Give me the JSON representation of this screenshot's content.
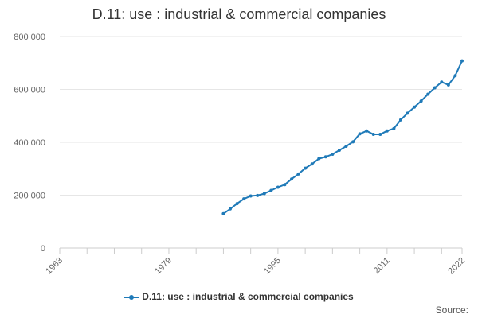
{
  "chart_data": {
    "type": "line",
    "title": "D.11: use : industrial & commercial companies",
    "xlabel": "",
    "ylabel": "",
    "x_ticks": [
      "1963",
      "1979",
      "1995",
      "2011",
      "2022"
    ],
    "y_ticks": [
      "0",
      "200 000",
      "400 000",
      "600 000",
      "800 000"
    ],
    "xlim": [
      1963,
      2022
    ],
    "ylim": [
      0,
      800000
    ],
    "grid": "horizontal",
    "legend_position": "bottom",
    "series": [
      {
        "name": "D.11: use : industrial & commercial companies",
        "color": "#1f7ab8",
        "x": [
          1987,
          1988,
          1989,
          1990,
          1991,
          1992,
          1993,
          1994,
          1995,
          1996,
          1997,
          1998,
          1999,
          2000,
          2001,
          2002,
          2003,
          2004,
          2005,
          2006,
          2007,
          2008,
          2009,
          2010,
          2011,
          2012,
          2013,
          2014,
          2015,
          2016,
          2017,
          2018,
          2019,
          2020,
          2021,
          2022
        ],
        "values": [
          130000,
          148000,
          168000,
          186000,
          197000,
          199000,
          206000,
          218000,
          230000,
          240000,
          261000,
          280000,
          302000,
          318000,
          338000,
          345000,
          355000,
          370000,
          385000,
          402000,
          432000,
          443000,
          430000,
          430000,
          443000,
          452000,
          485000,
          510000,
          533000,
          556000,
          582000,
          606000,
          628000,
          617000,
          652000,
          708000
        ]
      }
    ],
    "source_label": "Source:"
  }
}
